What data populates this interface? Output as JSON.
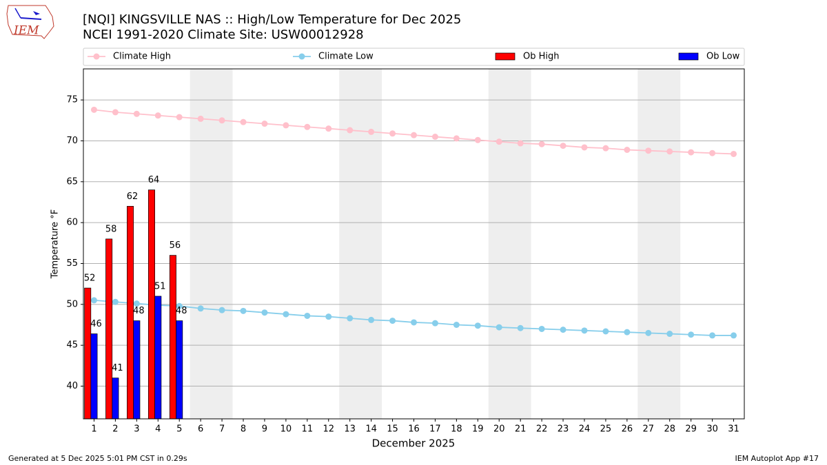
{
  "chart_data": {
    "type": "bar",
    "logo": "IEM",
    "title": "[NQI] KINGSVILLE NAS :: High/Low Temperature for Dec 2025",
    "subtitle": "NCEI 1991-2020 Climate Site: USW00012928",
    "ylabel": "Temperature °F",
    "xlabel": "December 2025",
    "footer_left": "Generated at 5 Dec 2025 5:01 PM CST in 0.29s",
    "footer_right": "IEM Autoplot App #17",
    "x": [
      1,
      2,
      3,
      4,
      5,
      6,
      7,
      8,
      9,
      10,
      11,
      12,
      13,
      14,
      15,
      16,
      17,
      18,
      19,
      20,
      21,
      22,
      23,
      24,
      25,
      26,
      27,
      28,
      29,
      30,
      31
    ],
    "xticks": [
      1,
      2,
      3,
      4,
      5,
      6,
      7,
      8,
      9,
      10,
      11,
      12,
      13,
      14,
      15,
      16,
      17,
      18,
      19,
      20,
      21,
      22,
      23,
      24,
      25,
      26,
      27,
      28,
      29,
      30,
      31
    ],
    "xlim": [
      0.5,
      31.5
    ],
    "ylim": [
      36,
      78.8
    ],
    "yticks": [
      40,
      45,
      50,
      55,
      60,
      65,
      70,
      75
    ],
    "grid": true,
    "shaded": [
      [
        5.5,
        7.5
      ],
      [
        12.5,
        14.5
      ],
      [
        19.5,
        21.5
      ],
      [
        26.5,
        28.5
      ]
    ],
    "series": [
      {
        "name": "Climate High",
        "kind": "line",
        "color": "#ffc0cb",
        "values": [
          73.8,
          73.5,
          73.3,
          73.1,
          72.9,
          72.7,
          72.5,
          72.3,
          72.1,
          71.9,
          71.7,
          71.5,
          71.3,
          71.1,
          70.9,
          70.7,
          70.5,
          70.3,
          70.1,
          69.9,
          69.7,
          69.6,
          69.4,
          69.2,
          69.1,
          68.9,
          68.8,
          68.7,
          68.6,
          68.5,
          68.4
        ]
      },
      {
        "name": "Climate Low",
        "kind": "line",
        "color": "#87ceeb",
        "values": [
          50.5,
          50.3,
          50.1,
          49.9,
          49.8,
          49.5,
          49.3,
          49.2,
          49.0,
          48.8,
          48.6,
          48.5,
          48.3,
          48.1,
          48.0,
          47.8,
          47.7,
          47.5,
          47.4,
          47.2,
          47.1,
          47.0,
          46.9,
          46.8,
          46.7,
          46.6,
          46.5,
          46.4,
          46.3,
          46.2,
          46.2
        ]
      },
      {
        "name": "Ob High",
        "kind": "bar",
        "color": "#ff0000",
        "values": [
          52,
          58,
          62,
          64,
          56,
          null,
          null,
          null,
          null,
          null,
          null,
          null,
          null,
          null,
          null,
          null,
          null,
          null,
          null,
          null,
          null,
          null,
          null,
          null,
          null,
          null,
          null,
          null,
          null,
          null,
          null
        ]
      },
      {
        "name": "Ob Low",
        "kind": "bar",
        "color": "#0000ff",
        "values": [
          46.4,
          41,
          48,
          51,
          48,
          null,
          null,
          null,
          null,
          null,
          null,
          null,
          null,
          null,
          null,
          null,
          null,
          null,
          null,
          null,
          null,
          null,
          null,
          null,
          null,
          null,
          null,
          null,
          null,
          null,
          null
        ],
        "value_labels": [
          "46",
          "41",
          "48",
          "51",
          "48",
          null,
          null,
          null,
          null,
          null,
          null,
          null,
          null,
          null,
          null,
          null,
          null,
          null,
          null,
          null,
          null,
          null,
          null,
          null,
          null,
          null,
          null,
          null,
          null,
          null,
          null
        ]
      }
    ]
  }
}
